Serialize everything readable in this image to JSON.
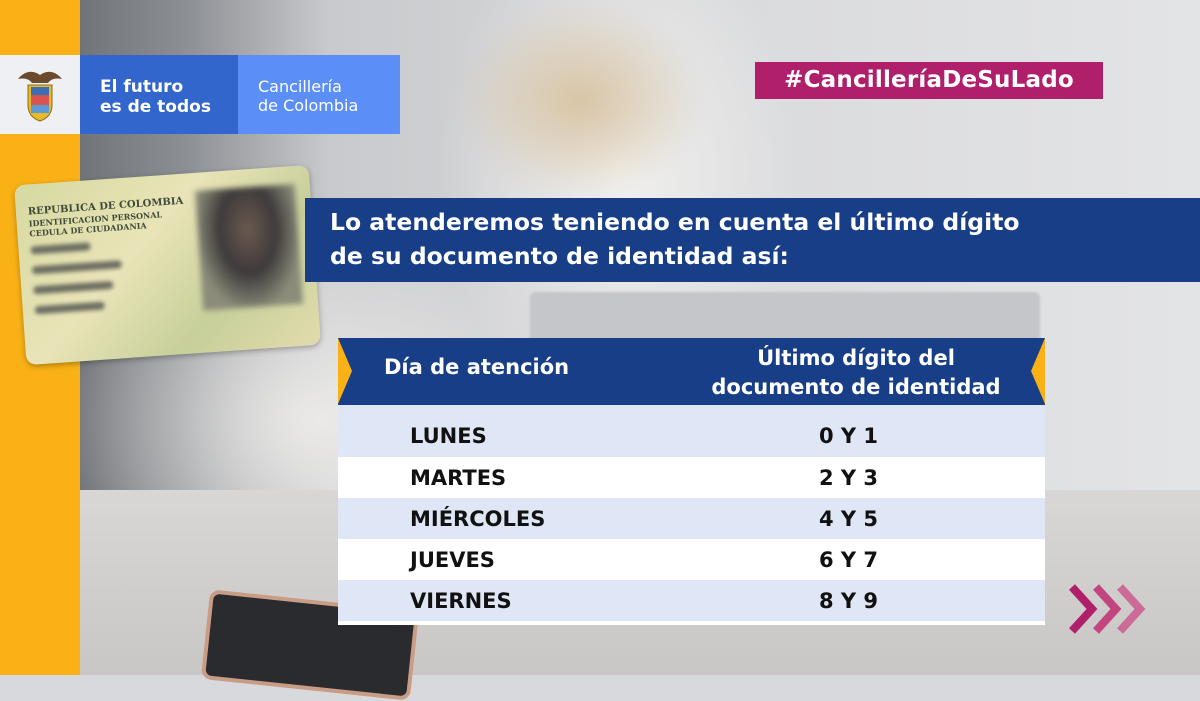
{
  "brand": {
    "slogan_line1": "El futuro",
    "slogan_line2": "es de todos",
    "entity_line1": "Cancillería",
    "entity_line2": "de Colombia",
    "crest_icon": "colombia-coat-of-arms"
  },
  "hashtag": "#CancilleríaDeSuLado",
  "headline": {
    "line1": "Lo atenderemos teniendo en cuenta el último dígito",
    "line2": "de su documento de identidad así:"
  },
  "id_card": {
    "line1": "REPUBLICA DE COLOMBIA",
    "line2": "IDENTIFICACION PERSONAL",
    "line3": "CEDULA DE CIUDADANIA"
  },
  "table": {
    "headers": [
      "Día de atención",
      "Último dígito del documento de identidad"
    ],
    "header2_line1": "Último dígito del",
    "header2_line2": "documento de identidad",
    "rows": [
      {
        "day": "LUNES",
        "digits": "0 Y 1"
      },
      {
        "day": "MARTES",
        "digits": "2 Y 3"
      },
      {
        "day": "MIÉRCOLES",
        "digits": "4 Y 5"
      },
      {
        "day": "JUEVES",
        "digits": "6 Y 7"
      },
      {
        "day": "VIERNES",
        "digits": "8 Y 9"
      }
    ]
  },
  "colors": {
    "yellow": "#f9b116",
    "navy": "#183e87",
    "blue": "#3366cc",
    "light_blue": "#5b8ef7",
    "magenta": "#b0206a"
  },
  "decor_icon": "triple-chevron-right"
}
